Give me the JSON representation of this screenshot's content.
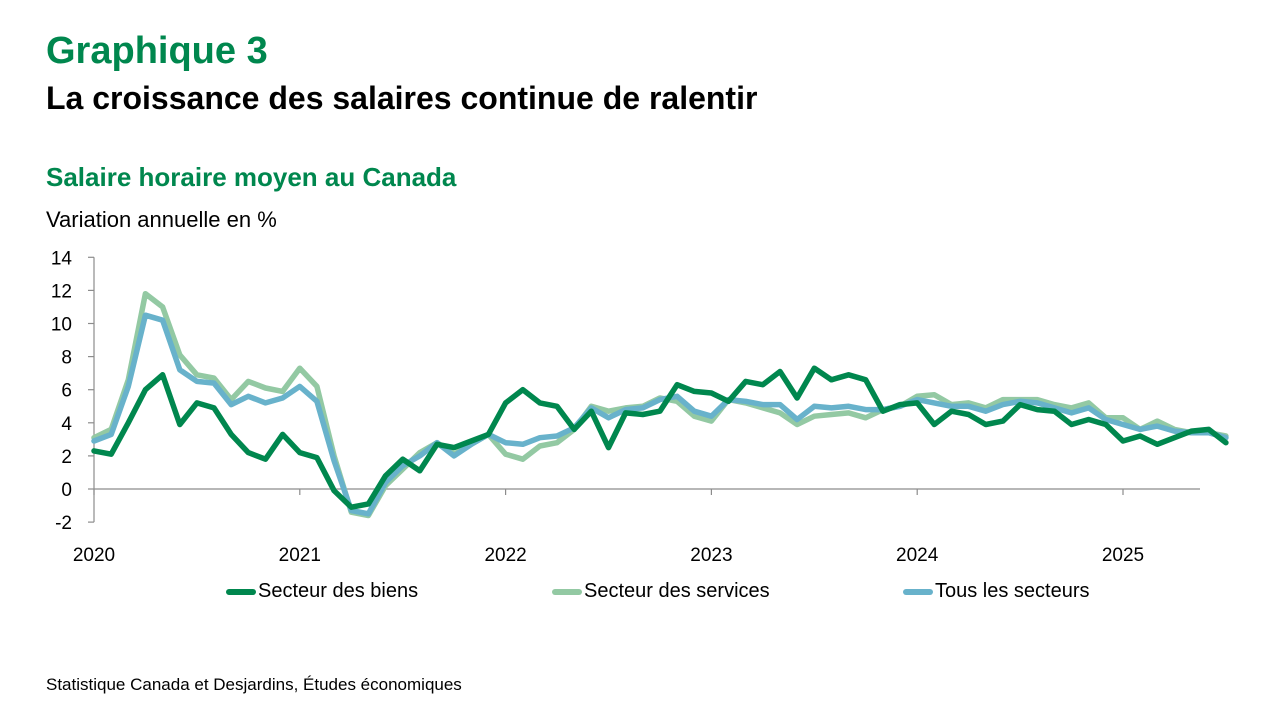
{
  "header": {
    "kicker": "Graphique 3",
    "title": "La croissance des salaires continue de ralentir",
    "subtitle": "Salaire horaire moyen au Canada",
    "unit": "Variation annuelle en %"
  },
  "source": "Statistique Canada et Desjardins, Études économiques",
  "colors": {
    "accent": "#00874E",
    "biens": "#00874E",
    "services": "#93C9A3",
    "tous": "#68B2CB"
  },
  "chart_data": {
    "type": "line",
    "title": "",
    "xlabel": "",
    "ylabel": "Variation annuelle en %",
    "ylim": [
      -2,
      14
    ],
    "yticks": [
      "14",
      "12",
      "10",
      "8",
      "6",
      "4",
      "2",
      "0",
      "-2"
    ],
    "xticks": [
      "2020",
      "2021",
      "2022",
      "2023",
      "2024",
      "2025"
    ],
    "x_start": "2020-01",
    "frequency": "monthly",
    "grid": false,
    "legend": "bottom",
    "series": [
      {
        "name": "Secteur des biens",
        "color": "#00874E",
        "values": [
          2.3,
          2.1,
          4.0,
          6.0,
          6.9,
          3.9,
          5.2,
          4.9,
          3.3,
          2.2,
          1.8,
          3.3,
          2.2,
          1.9,
          -0.1,
          -1.1,
          -0.9,
          0.8,
          1.8,
          1.1,
          2.7,
          2.5,
          2.9,
          3.3,
          5.2,
          6.0,
          5.2,
          5.0,
          3.6,
          4.7,
          2.5,
          4.6,
          4.5,
          4.7,
          6.3,
          5.9,
          5.8,
          5.3,
          6.5,
          6.3,
          7.1,
          5.5,
          7.3,
          6.6,
          6.9,
          6.6,
          4.7,
          5.1,
          5.2,
          3.9,
          4.7,
          4.5,
          3.9,
          4.1,
          5.1,
          4.8,
          4.7,
          3.9,
          4.2,
          3.9,
          2.9,
          3.2,
          2.7,
          3.1,
          3.5,
          3.6,
          2.8
        ]
      },
      {
        "name": "Secteur des services",
        "color": "#93C9A3",
        "values": [
          3.1,
          3.6,
          6.6,
          11.8,
          11.0,
          8.1,
          6.9,
          6.7,
          5.4,
          6.5,
          6.1,
          5.9,
          7.3,
          6.2,
          2.0,
          -1.4,
          -1.6,
          0.2,
          1.2,
          2.2,
          2.8,
          2.1,
          2.7,
          3.3,
          2.1,
          1.8,
          2.6,
          2.8,
          3.6,
          5.0,
          4.7,
          4.9,
          5.0,
          5.5,
          5.3,
          4.4,
          4.1,
          5.4,
          5.2,
          4.9,
          4.6,
          3.9,
          4.4,
          4.5,
          4.6,
          4.3,
          4.8,
          5.0,
          5.6,
          5.7,
          5.1,
          5.2,
          4.9,
          5.4,
          5.4,
          5.4,
          5.1,
          4.9,
          5.2,
          4.3,
          4.3,
          3.6,
          4.1,
          3.6,
          3.4,
          3.4,
          3.2
        ]
      },
      {
        "name": "Tous les secteurs",
        "color": "#68B2CB",
        "values": [
          2.9,
          3.3,
          6.2,
          10.5,
          10.2,
          7.2,
          6.5,
          6.4,
          5.1,
          5.6,
          5.2,
          5.5,
          6.2,
          5.3,
          1.7,
          -1.3,
          -1.5,
          0.4,
          1.4,
          2.0,
          2.8,
          2.0,
          2.7,
          3.3,
          2.8,
          2.7,
          3.1,
          3.2,
          3.7,
          4.9,
          4.3,
          4.8,
          4.9,
          5.4,
          5.6,
          4.7,
          4.4,
          5.4,
          5.3,
          5.1,
          5.1,
          4.2,
          5.0,
          4.9,
          5.0,
          4.8,
          4.8,
          5.0,
          5.4,
          5.2,
          5.0,
          5.0,
          4.7,
          5.1,
          5.3,
          5.2,
          4.9,
          4.6,
          4.9,
          4.2,
          3.9,
          3.6,
          3.8,
          3.5,
          3.4,
          3.4,
          3.1
        ]
      }
    ]
  }
}
